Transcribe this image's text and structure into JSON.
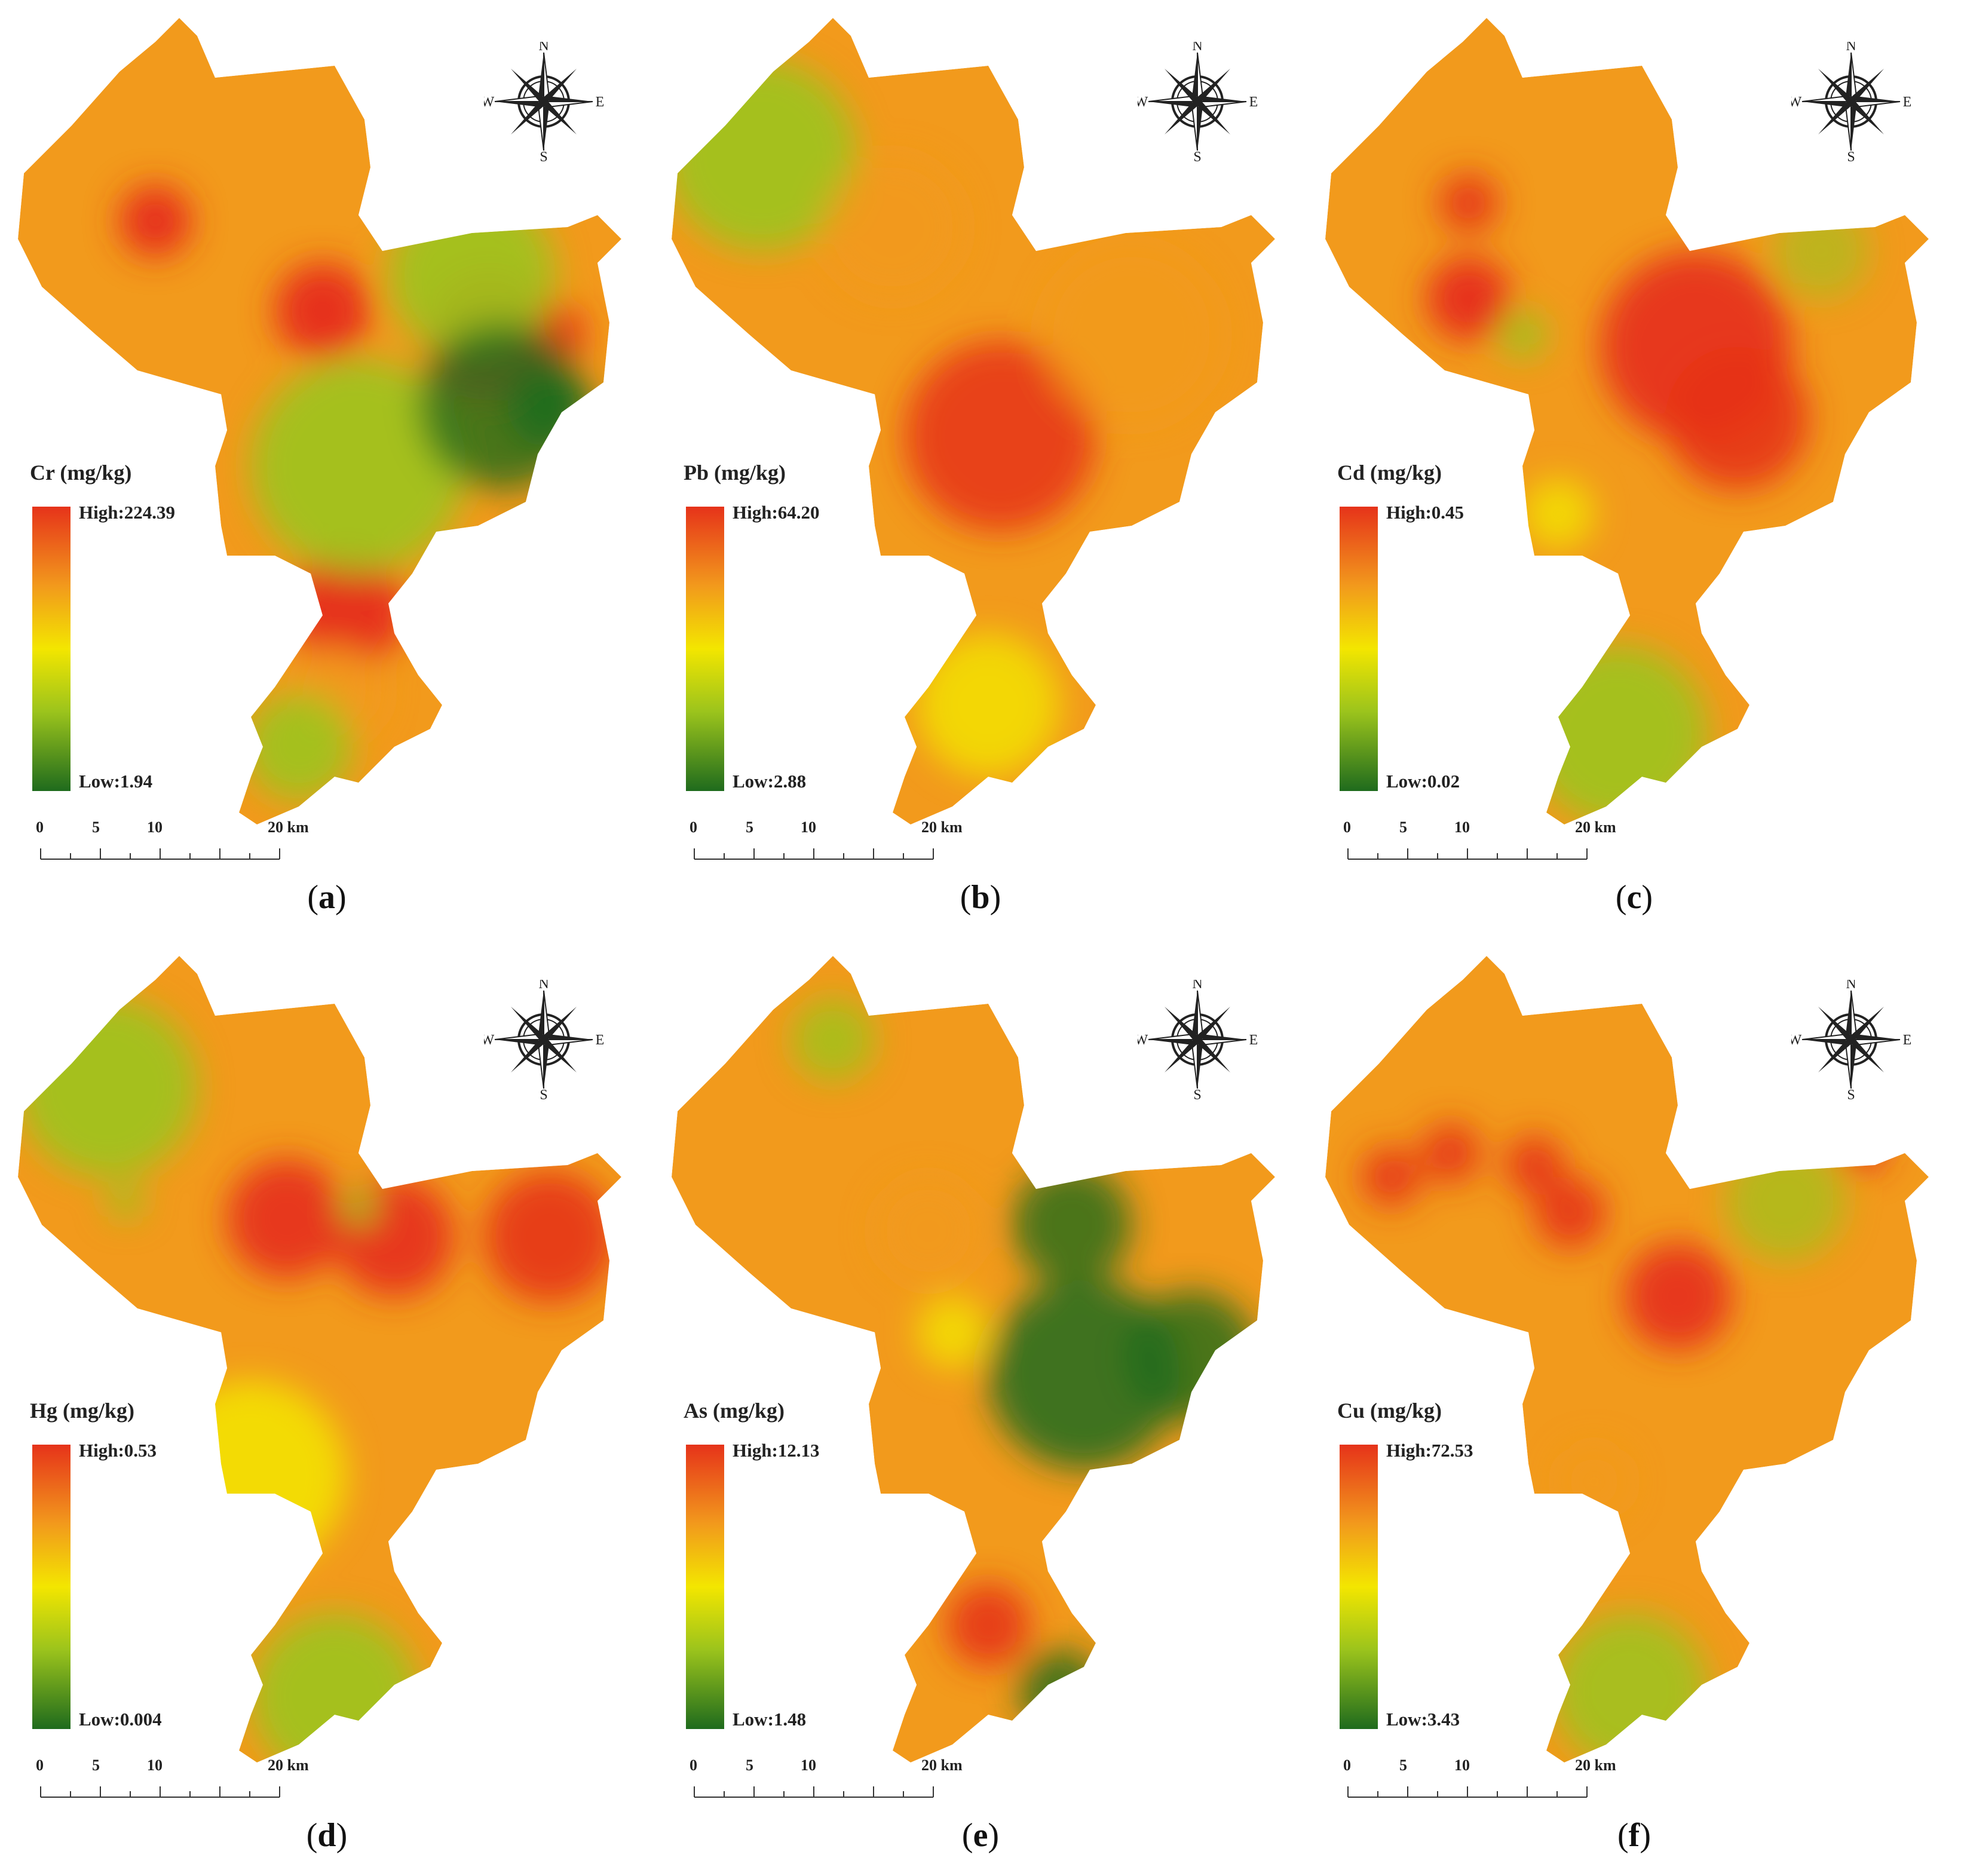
{
  "panels": [
    {
      "element": "Cr",
      "legend_title": "Cr (mg/kg)",
      "high": "High:224.39",
      "low": "Low:1.94",
      "label_letter": "a",
      "scale": [
        "0",
        "5",
        "10",
        "20 km"
      ],
      "compass": [
        "N",
        "S",
        "W",
        "E"
      ]
    },
    {
      "element": "Pb",
      "legend_title": "Pb (mg/kg)",
      "high": "High:64.20",
      "low": "Low:2.88",
      "label_letter": "b",
      "scale": [
        "0",
        "5",
        "10",
        "20 km"
      ],
      "compass": [
        "N",
        "S",
        "W",
        "E"
      ]
    },
    {
      "element": "Cd",
      "legend_title": "Cd (mg/kg)",
      "high": "High:0.45",
      "low": "Low:0.02",
      "label_letter": "c",
      "scale": [
        "0",
        "5",
        "10",
        "20 km"
      ],
      "compass": [
        "N",
        "S",
        "W",
        "E"
      ]
    },
    {
      "element": "Hg",
      "legend_title": "Hg (mg/kg)",
      "high": "High:0.53",
      "low": "Low:0.004",
      "label_letter": "d",
      "scale": [
        "0",
        "5",
        "10",
        "20 km"
      ],
      "compass": [
        "N",
        "S",
        "W",
        "E"
      ]
    },
    {
      "element": "As",
      "legend_title": "As (mg/kg)",
      "high": "High:12.13",
      "low": "Low:1.48",
      "label_letter": "e",
      "scale": [
        "0",
        "5",
        "10",
        "20 km"
      ],
      "compass": [
        "N",
        "S",
        "W",
        "E"
      ]
    },
    {
      "element": "Cu",
      "legend_title": "Cu (mg/kg)",
      "high": "High:72.53",
      "low": "Low:3.43",
      "label_letter": "f",
      "scale": [
        "0",
        "5",
        "10",
        "20 km"
      ],
      "compass": [
        "N",
        "S",
        "W",
        "E"
      ]
    }
  ],
  "colors": {
    "high": "#e6331a",
    "mid_high": "#f29a1c",
    "mid": "#f3e600",
    "mid_low": "#9cc41c",
    "low": "#1f6b1d"
  }
}
